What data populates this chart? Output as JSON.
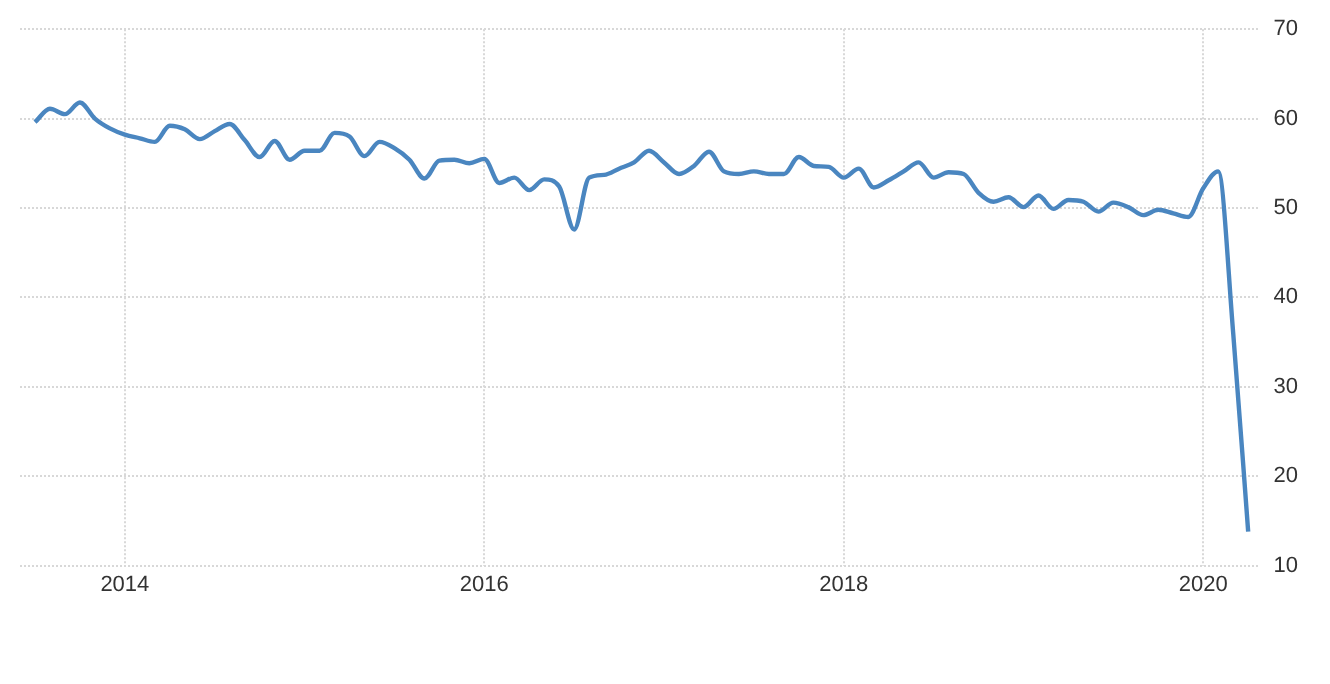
{
  "chart_data": {
    "type": "line",
    "x": [
      "2013-07",
      "2013-08",
      "2013-09",
      "2013-10",
      "2013-11",
      "2013-12",
      "2014-01",
      "2014-02",
      "2014-03",
      "2014-04",
      "2014-05",
      "2014-06",
      "2014-07",
      "2014-08",
      "2014-09",
      "2014-10",
      "2014-11",
      "2014-12",
      "2015-01",
      "2015-02",
      "2015-03",
      "2015-04",
      "2015-05",
      "2015-06",
      "2015-07",
      "2015-08",
      "2015-09",
      "2015-10",
      "2015-11",
      "2015-12",
      "2016-01",
      "2016-02",
      "2016-03",
      "2016-04",
      "2016-05",
      "2016-06",
      "2016-07",
      "2016-08",
      "2016-09",
      "2016-10",
      "2016-11",
      "2016-12",
      "2017-01",
      "2017-02",
      "2017-03",
      "2017-04",
      "2017-05",
      "2017-06",
      "2017-07",
      "2017-08",
      "2017-09",
      "2017-10",
      "2017-11",
      "2017-12",
      "2018-01",
      "2018-02",
      "2018-03",
      "2018-04",
      "2018-05",
      "2018-06",
      "2018-07",
      "2018-08",
      "2018-09",
      "2018-10",
      "2018-11",
      "2018-12",
      "2019-01",
      "2019-02",
      "2019-03",
      "2019-04",
      "2019-05",
      "2019-06",
      "2019-07",
      "2019-08",
      "2019-09",
      "2019-10",
      "2019-11",
      "2019-12",
      "2020-01",
      "2020-02",
      "2020-03",
      "2020-04"
    ],
    "series": [
      {
        "color": "#4a86c0",
        "values": [
          59.6,
          61.1,
          60.5,
          61.8,
          60.0,
          58.9,
          58.2,
          57.8,
          57.4,
          59.2,
          58.8,
          57.7,
          58.6,
          59.4,
          57.6,
          55.7,
          57.5,
          55.4,
          56.4,
          56.4,
          58.4,
          58.0,
          55.8,
          57.4,
          56.7,
          55.4,
          53.3,
          55.3,
          55.4,
          55.0,
          55.5,
          52.8,
          53.4,
          52.0,
          53.2,
          52.4,
          47.6,
          53.4,
          53.7,
          54.4,
          55.1,
          56.4,
          55.1,
          53.8,
          54.7,
          56.3,
          54.1,
          53.8,
          54.1,
          53.8,
          53.8,
          55.7,
          54.7,
          54.6,
          53.4,
          54.4,
          52.3,
          53.1,
          54.1,
          55.1,
          53.4,
          54.0,
          53.8,
          51.7,
          50.7,
          51.2,
          50.1,
          51.4,
          49.9,
          50.9,
          50.7,
          49.6,
          50.6,
          50.1,
          49.2,
          49.8,
          49.4,
          49.0,
          52.2,
          54.1,
          36,
          13.8
        ]
      }
    ],
    "xlim": [
      "2013-06-01",
      "2020-04-20"
    ],
    "xticks": [
      "2014",
      "2016",
      "2018",
      "2020"
    ],
    "ylim": [
      10,
      70
    ],
    "yticks": [
      10,
      20,
      30,
      40,
      50,
      60,
      70
    ],
    "grid": true,
    "line_style": "solid",
    "marker": "none"
  }
}
